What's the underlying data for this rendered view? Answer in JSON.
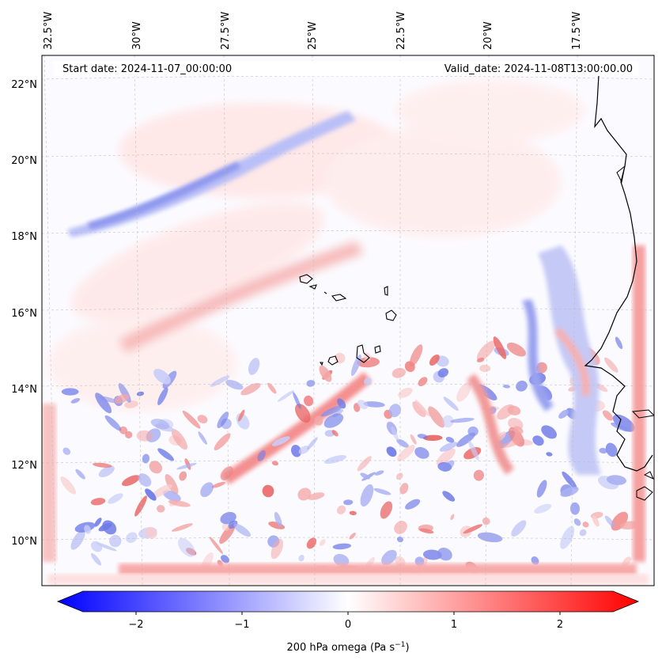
{
  "map": {
    "lon_ticks": [
      "32.5°W",
      "30°W",
      "27.5°W",
      "25°W",
      "22.5°W",
      "20°W",
      "17.5°W"
    ],
    "lat_ticks": [
      "22°N",
      "20°N",
      "18°N",
      "16°N",
      "14°N",
      "12°N",
      "10°N"
    ],
    "start_date": "Start date: 2024-11-07_00:00:00",
    "valid_date": "Valid_date: 2024-11-08T13:00:00.00"
  },
  "colorbar": {
    "ticks": [
      "−2",
      "−1",
      "0",
      "1",
      "2"
    ],
    "label_main": "200 hPa omega (Pa s",
    "label_sup": "−1",
    "label_end": ")",
    "min_color": "#0000ff",
    "mid_color": "#ffffff",
    "max_color": "#ff0000"
  }
}
